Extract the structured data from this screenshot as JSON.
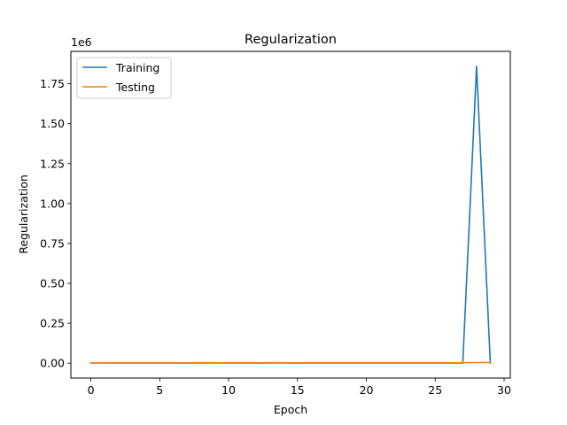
{
  "chart_data": {
    "type": "line",
    "title": "Regularization",
    "xlabel": "Epoch",
    "ylabel": "Regularization",
    "y_offset_label": "1e6",
    "xlim": [
      -1.45,
      30.45
    ],
    "ylim": [
      -93000,
      1953000
    ],
    "x_ticks": [
      0,
      5,
      10,
      15,
      20,
      25,
      30
    ],
    "x_tick_labels": [
      "0",
      "5",
      "10",
      "15",
      "20",
      "25",
      "30"
    ],
    "y_ticks": [
      0,
      250000,
      500000,
      750000,
      1000000,
      1250000,
      1500000,
      1750000
    ],
    "y_tick_labels": [
      "0.00",
      "0.25",
      "0.50",
      "0.75",
      "1.00",
      "1.25",
      "1.50",
      "1.75"
    ],
    "grid": false,
    "legend_position": "upper left",
    "x": [
      0,
      1,
      2,
      3,
      4,
      5,
      6,
      7,
      8,
      9,
      10,
      11,
      12,
      13,
      14,
      15,
      16,
      17,
      18,
      19,
      20,
      21,
      22,
      23,
      24,
      25,
      26,
      27,
      28,
      29
    ],
    "series": [
      {
        "name": "Training",
        "color": "#1f77b4",
        "values": [
          1500,
          1200,
          1100,
          1000,
          1000,
          1000,
          1000,
          1000,
          1500,
          1200,
          1100,
          1000,
          1100,
          1500,
          1200,
          1000,
          1000,
          1000,
          1000,
          1000,
          1000,
          1000,
          1000,
          1000,
          1000,
          1000,
          1000,
          1000,
          1860000,
          1000
        ]
      },
      {
        "name": "Testing",
        "color": "#ff7f0e",
        "values": [
          2500,
          2000,
          2000,
          2000,
          2000,
          2000,
          2000,
          2000,
          4000,
          3000,
          2500,
          2500,
          2500,
          3500,
          3000,
          2500,
          2500,
          2500,
          2500,
          2500,
          2500,
          2500,
          2500,
          2500,
          2500,
          2500,
          2500,
          3000,
          4000,
          5000
        ]
      }
    ]
  }
}
